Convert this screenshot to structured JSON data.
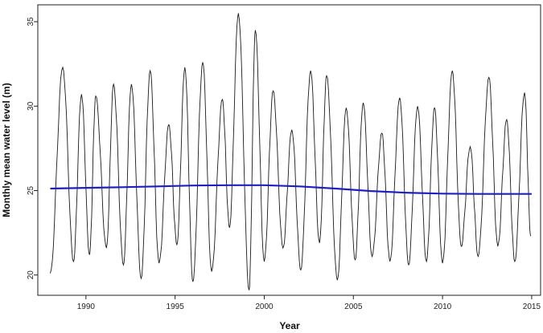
{
  "chart_data": {
    "type": "line",
    "title": "",
    "xlabel": "Year",
    "ylabel": "Monthly mean water level (m)",
    "xlim": [
      1987.3,
      2015.5
    ],
    "ylim": [
      18.8,
      36.0
    ],
    "x_ticks": [
      1990,
      1995,
      2000,
      2005,
      2010,
      2015
    ],
    "y_ticks": [
      20,
      25,
      30,
      35
    ],
    "grid": false,
    "legend": "none",
    "series_colors": {
      "water_level": "#1a1a1a",
      "trend": "#1f1fbf"
    },
    "peaks": [
      [
        1988.0,
        20.1
      ],
      [
        1988.7,
        32.3
      ],
      [
        1989.3,
        20.8
      ],
      [
        1989.75,
        30.7
      ],
      [
        1990.2,
        21.2
      ],
      [
        1990.55,
        30.6
      ],
      [
        1991.15,
        21.6
      ],
      [
        1991.55,
        31.3
      ],
      [
        1992.1,
        20.6
      ],
      [
        1992.55,
        31.3
      ],
      [
        1993.1,
        19.8
      ],
      [
        1993.6,
        32.1
      ],
      [
        1994.1,
        20.7
      ],
      [
        1994.65,
        28.9
      ],
      [
        1995.1,
        21.8
      ],
      [
        1995.55,
        32.3
      ],
      [
        1996.0,
        19.6
      ],
      [
        1996.55,
        32.6
      ],
      [
        1997.05,
        20.2
      ],
      [
        1997.65,
        30.4
      ],
      [
        1998.05,
        22.8
      ],
      [
        1998.55,
        35.5
      ],
      [
        1999.15,
        19.1
      ],
      [
        1999.5,
        34.5
      ],
      [
        2000.0,
        20.8
      ],
      [
        2000.5,
        30.9
      ],
      [
        2001.05,
        21.6
      ],
      [
        2001.55,
        28.6
      ],
      [
        2002.05,
        20.3
      ],
      [
        2002.6,
        32.1
      ],
      [
        2003.1,
        21.9
      ],
      [
        2003.5,
        31.8
      ],
      [
        2004.1,
        19.7
      ],
      [
        2004.6,
        29.9
      ],
      [
        2005.1,
        20.9
      ],
      [
        2005.55,
        30.2
      ],
      [
        2006.05,
        21.1
      ],
      [
        2006.6,
        28.4
      ],
      [
        2007.05,
        20.8
      ],
      [
        2007.6,
        30.5
      ],
      [
        2008.1,
        20.6
      ],
      [
        2008.6,
        30.0
      ],
      [
        2009.1,
        20.8
      ],
      [
        2009.55,
        29.9
      ],
      [
        2010.0,
        20.7
      ],
      [
        2010.55,
        32.1
      ],
      [
        2011.05,
        21.7
      ],
      [
        2011.55,
        27.6
      ],
      [
        2012.0,
        21.1
      ],
      [
        2012.6,
        31.7
      ],
      [
        2013.1,
        21.7
      ],
      [
        2013.6,
        29.2
      ],
      [
        2014.05,
        20.8
      ],
      [
        2014.6,
        30.8
      ],
      [
        2014.95,
        22.3
      ]
    ],
    "trend": {
      "x": [
        1988.0,
        1990.0,
        1992.0,
        1994.0,
        1996.0,
        1998.0,
        2000.0,
        2002.0,
        2004.0,
        2006.0,
        2008.0,
        2010.0,
        2012.0,
        2014.0,
        2015.0
      ],
      "y": [
        25.12,
        25.16,
        25.2,
        25.25,
        25.3,
        25.32,
        25.32,
        25.25,
        25.12,
        24.97,
        24.87,
        24.82,
        24.8,
        24.8,
        24.8
      ]
    }
  }
}
